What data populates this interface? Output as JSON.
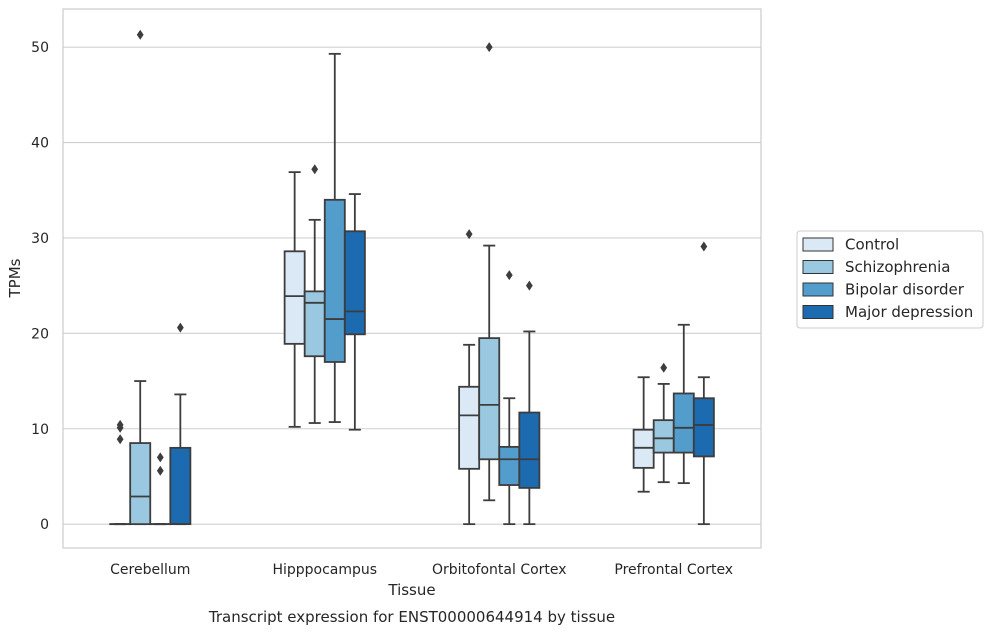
{
  "chart_data": {
    "type": "box",
    "title": "Transcript expression for ENST00000644914 by tissue",
    "xlabel": "Tissue",
    "ylabel": "TPMs",
    "ylim": [
      -2.5,
      54
    ],
    "yticks": [
      0,
      10,
      20,
      30,
      40,
      50
    ],
    "grid": true,
    "legend_position": "right",
    "categories": [
      "Cerebellum",
      "Hipppocampus",
      "Orbitofontal Cortex",
      "Prefrontal Cortex"
    ],
    "series": [
      {
        "name": "Control",
        "color": "#dbe9f6",
        "boxes": [
          {
            "whisker_low": 0,
            "q1": 0,
            "median": 0,
            "q3": 0,
            "whisker_high": 0,
            "outliers": [
              8.9,
              10.1,
              10.4
            ]
          },
          {
            "whisker_low": 10.2,
            "q1": 18.9,
            "median": 23.9,
            "q3": 28.6,
            "whisker_high": 36.9,
            "outliers": []
          },
          {
            "whisker_low": 0,
            "q1": 5.8,
            "median": 11.4,
            "q3": 14.4,
            "whisker_high": 18.8,
            "outliers": [
              30.4
            ]
          },
          {
            "whisker_low": 3.4,
            "q1": 5.9,
            "median": 8.0,
            "q3": 9.9,
            "whisker_high": 15.4,
            "outliers": []
          }
        ]
      },
      {
        "name": "Schizophrenia",
        "color": "#9ac8e0",
        "boxes": [
          {
            "whisker_low": 0,
            "q1": 0,
            "median": 2.9,
            "q3": 8.5,
            "whisker_high": 15.0,
            "outliers": [
              51.3
            ]
          },
          {
            "whisker_low": 10.6,
            "q1": 17.6,
            "median": 23.2,
            "q3": 24.4,
            "whisker_high": 31.9,
            "outliers": [
              37.2
            ]
          },
          {
            "whisker_low": 2.5,
            "q1": 6.8,
            "median": 12.5,
            "q3": 19.5,
            "whisker_high": 29.2,
            "outliers": [
              50.0
            ]
          },
          {
            "whisker_low": 4.4,
            "q1": 7.5,
            "median": 9.0,
            "q3": 10.9,
            "whisker_high": 14.7,
            "outliers": [
              16.4
            ]
          }
        ]
      },
      {
        "name": "Bipolar disorder",
        "color": "#529dcc",
        "boxes": [
          {
            "whisker_low": 0,
            "q1": 0,
            "median": 0,
            "q3": 0,
            "whisker_high": 0,
            "outliers": [
              5.6,
              7.0
            ]
          },
          {
            "whisker_low": 10.7,
            "q1": 17.0,
            "median": 21.5,
            "q3": 34.0,
            "whisker_high": 49.3,
            "outliers": []
          },
          {
            "whisker_low": 0,
            "q1": 4.1,
            "median": 6.8,
            "q3": 8.1,
            "whisker_high": 13.2,
            "outliers": [
              26.1
            ]
          },
          {
            "whisker_low": 4.3,
            "q1": 7.5,
            "median": 10.1,
            "q3": 13.7,
            "whisker_high": 20.9,
            "outliers": []
          }
        ]
      },
      {
        "name": "Major depression",
        "color": "#1c6aaf",
        "boxes": [
          {
            "whisker_low": 0,
            "q1": 0,
            "median": 0,
            "q3": 8.0,
            "whisker_high": 13.6,
            "outliers": [
              20.6
            ]
          },
          {
            "whisker_low": 9.9,
            "q1": 19.9,
            "median": 22.3,
            "q3": 30.7,
            "whisker_high": 34.6,
            "outliers": []
          },
          {
            "whisker_low": 0,
            "q1": 3.8,
            "median": 6.8,
            "q3": 11.7,
            "whisker_high": 20.2,
            "outliers": [
              25.0
            ]
          },
          {
            "whisker_low": 0,
            "q1": 7.1,
            "median": 10.4,
            "q3": 13.2,
            "whisker_high": 15.4,
            "outliers": [
              29.1
            ]
          }
        ]
      }
    ]
  }
}
